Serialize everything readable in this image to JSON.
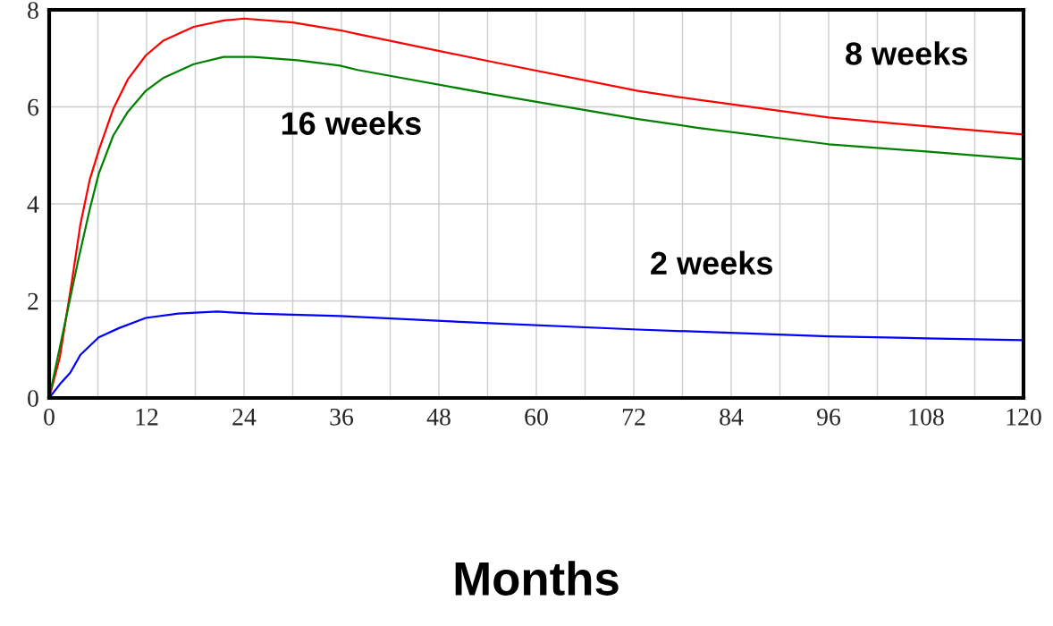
{
  "chart_data": {
    "type": "line",
    "xlabel": "Months",
    "xlim": [
      0,
      120
    ],
    "xticks": [
      0,
      {
        "value": 6,
        "label": null
      },
      12,
      {
        "value": 18,
        "label": null
      },
      24,
      {
        "value": 30,
        "label": null
      },
      36,
      {
        "value": 42,
        "label": null
      },
      48,
      {
        "value": 54,
        "label": null
      },
      60,
      {
        "value": 66,
        "label": null
      },
      72,
      {
        "value": 78,
        "label": null
      },
      84,
      {
        "value": 90,
        "label": null
      },
      96,
      {
        "value": 102,
        "label": null
      },
      108,
      {
        "value": 114,
        "label": null
      },
      120
    ],
    "ylim": [
      0,
      8
    ],
    "yticks": [
      0,
      2,
      4,
      6,
      8
    ],
    "grid": true,
    "legend": false,
    "series": [
      {
        "name": "8 weeks",
        "color": "#ff0000",
        "x": [
          0,
          1.3,
          2.75,
          3.85,
          5,
          6.1,
          7.9,
          9.7,
          11.9,
          14.1,
          17.8,
          21.5,
          24,
          30,
          35.8,
          38,
          54.2,
          72.5,
          77.6,
          79.8,
          96,
          108,
          120
        ],
        "values": [
          0,
          0.83,
          2.35,
          3.58,
          4.5,
          5.1,
          5.96,
          6.57,
          7.06,
          7.37,
          7.65,
          7.78,
          7.82,
          7.74,
          7.58,
          7.5,
          6.94,
          6.33,
          6.2,
          6.15,
          5.78,
          5.6,
          5.43
        ]
      },
      {
        "name": "16 weeks",
        "color": "#008000",
        "x": [
          0,
          1.8,
          3.5,
          5,
          6.1,
          7.9,
          9.7,
          11.9,
          14.1,
          17.8,
          21.5,
          25.1,
          30.6,
          35.8,
          38,
          54.2,
          72.5,
          79.8,
          96,
          108,
          120
        ],
        "values": [
          0,
          1.43,
          2.78,
          3.89,
          4.62,
          5.41,
          5.9,
          6.33,
          6.6,
          6.88,
          7.03,
          7.03,
          6.96,
          6.85,
          6.76,
          6.27,
          5.75,
          5.57,
          5.23,
          5.08,
          4.92
        ]
      },
      {
        "name": "2 weeks",
        "color": "#0000ff",
        "x": [
          0,
          1.3,
          2.6,
          3.85,
          6.1,
          8.6,
          11.9,
          15.9,
          20.7,
          25.1,
          35.8,
          54.2,
          72.5,
          96,
          108,
          120
        ],
        "values": [
          0,
          0.28,
          0.52,
          0.89,
          1.25,
          1.44,
          1.65,
          1.74,
          1.78,
          1.74,
          1.69,
          1.54,
          1.41,
          1.27,
          1.23,
          1.19
        ]
      }
    ]
  }
}
